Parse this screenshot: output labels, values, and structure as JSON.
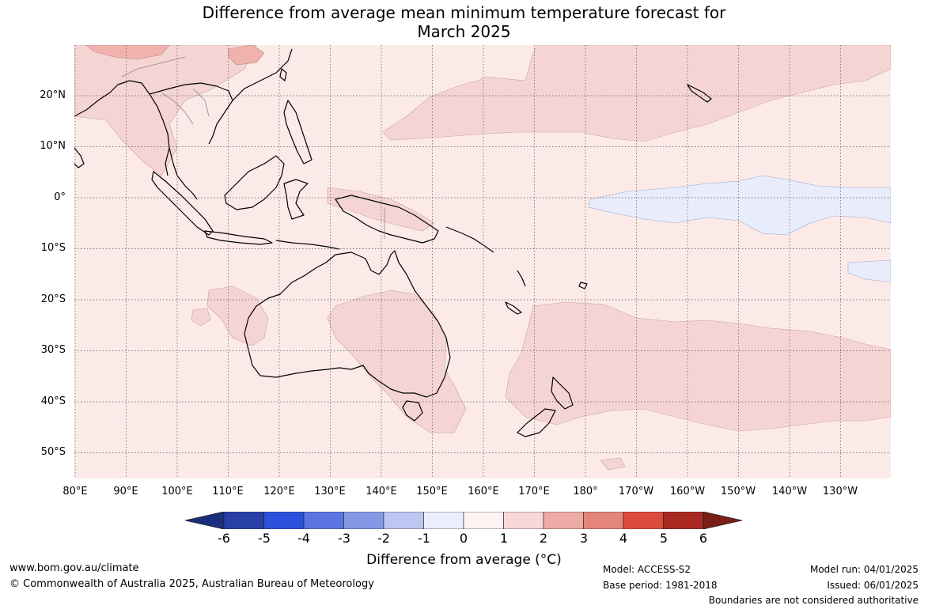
{
  "title_line1": "Difference from average mean minimum temperature forecast for",
  "title_line2": "March 2025",
  "lat_labels": [
    "20°N",
    "10°N",
    "0°",
    "10°S",
    "20°S",
    "30°S",
    "40°S",
    "50°S"
  ],
  "lon_labels": [
    "80°E",
    "90°E",
    "100°E",
    "110°E",
    "120°E",
    "130°E",
    "140°E",
    "150°E",
    "160°E",
    "170°E",
    "180°",
    "170°W",
    "160°W",
    "150°W",
    "140°W",
    "130°W"
  ],
  "colorbar": {
    "ticks": [
      "-6",
      "-5",
      "-4",
      "-3",
      "-2",
      "-1",
      "0",
      "1",
      "2",
      "3",
      "4",
      "5",
      "6"
    ],
    "colors": [
      "#283fa8",
      "#2d50dc",
      "#5b74e2",
      "#8598e6",
      "#bcc6f0",
      "#eaedfb",
      "#fdf3f2",
      "#f8d8d6",
      "#eeaaa4",
      "#e58479",
      "#dc4a3c",
      "#aa2a22"
    ],
    "under_color": "#1b2e7e",
    "over_color": "#7a1e16",
    "label": "Difference from average (°C)"
  },
  "footer": {
    "website": "www.bom.gov.au/climate",
    "copyright": "© Commonwealth of Australia 2025, Australian Bureau of Meteorology",
    "model": "Model: ACCESS-S2",
    "base_period": "Base period: 1981-2018",
    "model_run": "Model run: 04/01/2025",
    "issued": "Issued: 06/01/2025",
    "disclaimer": "Boundaries are not considered authoritative"
  },
  "map_colors": {
    "background": "#fbeae7",
    "warm_1_2": "#f5d5d3",
    "warm_2_3": "#f0b2ad",
    "cool_0_1": "#e9ecfb",
    "coast": "#000000"
  }
}
